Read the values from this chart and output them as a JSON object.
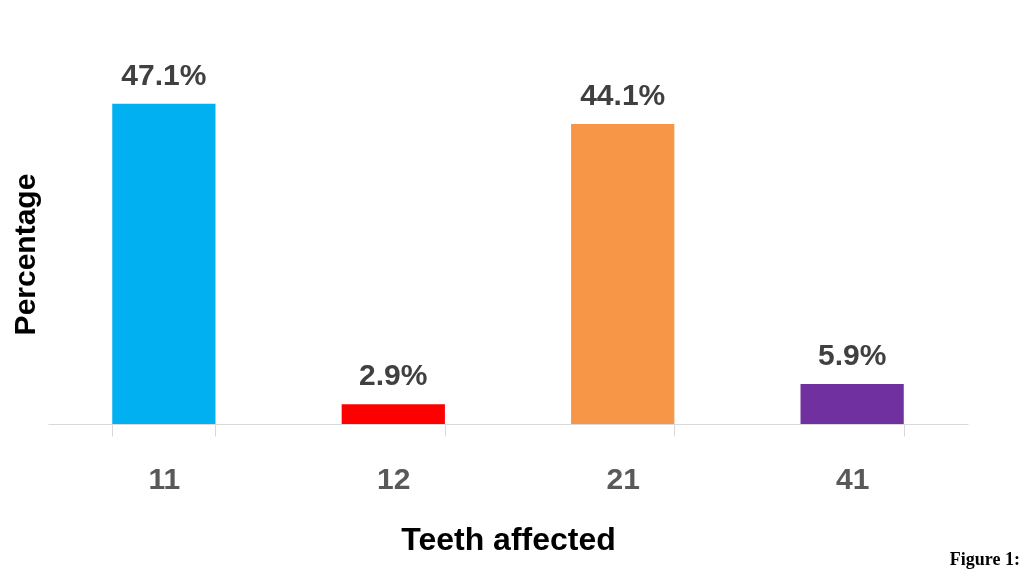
{
  "chart_data": {
    "type": "bar",
    "xlabel": "Teeth affected",
    "ylabel": "Percentage",
    "categories": [
      "11",
      "12",
      "21",
      "41"
    ],
    "values": [
      47.1,
      2.9,
      44.1,
      5.9
    ],
    "colors": [
      "#00b0f0",
      "#ff0000",
      "#f79646",
      "#7030a0"
    ],
    "value_labels": [
      "47.1%",
      "2.9%",
      "44.1%",
      "5.9%"
    ],
    "annotations": [
      "Figure 1:"
    ]
  }
}
